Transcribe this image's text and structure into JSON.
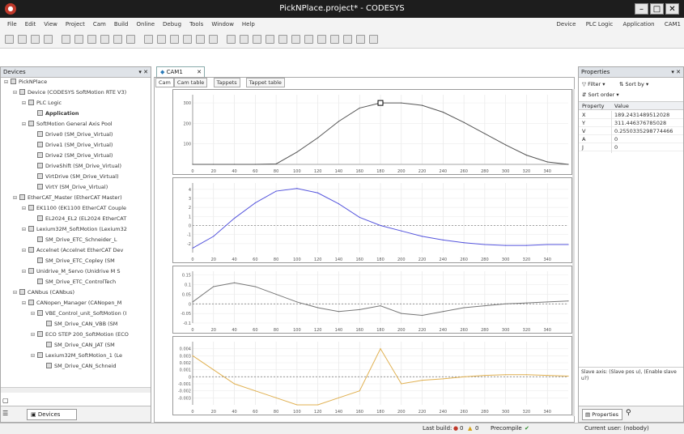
{
  "window": {
    "title": "PickNPlace.project* - CODESYS",
    "app_icon": "codesys-icon"
  },
  "menu": {
    "items": [
      "File",
      "Edit",
      "View",
      "Project",
      "Cam",
      "Build",
      "Online",
      "Debug",
      "Tools",
      "Window",
      "Help"
    ],
    "right": {
      "device": "Device",
      "plc": "PLC Logic",
      "application": "Application",
      "cam": "CAM1"
    }
  },
  "devices_panel": {
    "title": "Devices",
    "tab_label": "Devices",
    "items": [
      {
        "label": "PickNPlace",
        "level": 0,
        "icon": "project-icon"
      },
      {
        "label": "Device (CODESYS SoftMotion RTE V3)",
        "level": 1,
        "icon": "device-icon"
      },
      {
        "label": "PLC Logic",
        "level": 2,
        "icon": "plc-icon"
      },
      {
        "label": "Application",
        "level": 3,
        "icon": "application-icon",
        "bold": true
      },
      {
        "label": "SoftMotion General Axis Pool",
        "level": 2,
        "icon": "axis-pool-icon"
      },
      {
        "label": "Drive0 (SM_Drive_Virtual)",
        "level": 3,
        "icon": "drive-icon"
      },
      {
        "label": "Drive1 (SM_Drive_Virtual)",
        "level": 3,
        "icon": "drive-icon"
      },
      {
        "label": "Drive2 (SM_Drive_Virtual)",
        "level": 3,
        "icon": "drive-icon"
      },
      {
        "label": "DriveShift (SM_Drive_Virtual)",
        "level": 3,
        "icon": "drive-icon"
      },
      {
        "label": "VirtDrive (SM_Drive_Virtual)",
        "level": 3,
        "icon": "drive-icon"
      },
      {
        "label": "VirtY (SM_Drive_Virtual)",
        "level": 3,
        "icon": "drive-icon"
      },
      {
        "label": "EtherCAT_Master (EtherCAT Master)",
        "level": 1,
        "icon": "ethercat-icon"
      },
      {
        "label": "EK1100 (EK1100 EtherCAT Couple",
        "level": 2,
        "icon": "coupler-icon"
      },
      {
        "label": "EL2024_EL2 (EL2024 EtherCAT",
        "level": 3,
        "icon": "io-icon"
      },
      {
        "label": "Lexium32M_SoftMotion (Lexium32",
        "level": 2,
        "icon": "drive-icon"
      },
      {
        "label": "SM_Drive_ETC_Schneider_L",
        "level": 3,
        "icon": "drive-icon"
      },
      {
        "label": "Accelnet (Accelnet EtherCAT Dev",
        "level": 2,
        "icon": "drive-icon"
      },
      {
        "label": "SM_Drive_ETC_Copley (SM",
        "level": 3,
        "icon": "drive-icon"
      },
      {
        "label": "Unidrive_M_Servo (Unidrive M S",
        "level": 2,
        "icon": "drive-icon"
      },
      {
        "label": "SM_Drive_ETC_ControlTech",
        "level": 3,
        "icon": "drive-icon"
      },
      {
        "label": "CANbus (CANbus)",
        "level": 1,
        "icon": "canbus-icon"
      },
      {
        "label": "CANopen_Manager (CANopen_M",
        "level": 2,
        "icon": "canopen-icon"
      },
      {
        "label": "VBE_Control_unit_SoftMotion (I",
        "level": 3,
        "icon": "drive-icon"
      },
      {
        "label": "SM_Drive_CAN_VBB (SM",
        "level": 4,
        "icon": "drive-icon"
      },
      {
        "label": "ECO STEP 200_SoftMotion (ECO",
        "level": 3,
        "icon": "drive-icon"
      },
      {
        "label": "SM_Drive_CAN_JAT (SM",
        "level": 4,
        "icon": "drive-icon"
      },
      {
        "label": "Lexium32M_SoftMotion_1 (Le",
        "level": 3,
        "icon": "drive-icon"
      },
      {
        "label": "SM_Drive_CAN_Schneid",
        "level": 4,
        "icon": "drive-icon"
      }
    ]
  },
  "editor": {
    "doc_tab": "CAM1",
    "subtabs": [
      "Cam",
      "Cam table",
      "Tappets",
      "Tappet table"
    ]
  },
  "properties": {
    "title": "Properties",
    "filter_label": "Filter",
    "sort_by_label": "Sort by",
    "sort_order_label": "Sort order",
    "col_property": "Property",
    "col_value": "Value",
    "rows": [
      {
        "k": "X",
        "v": "189.2431489512028"
      },
      {
        "k": "Y",
        "v": "311.446376785028"
      },
      {
        "k": "V",
        "v": "0.2550335298774466"
      },
      {
        "k": "A",
        "v": "0"
      },
      {
        "k": "J",
        "v": "0"
      }
    ],
    "hint": "Slave axis: (Slave pos u), (Enable slave u?)",
    "tab_label": "Properties"
  },
  "status": {
    "last_build": "Last build:",
    "errors": "0",
    "warnings": "0",
    "precompile": "Precompile",
    "user": "Current user: (nobody)"
  },
  "chart_data": [
    {
      "type": "line",
      "x": [
        0,
        20,
        40,
        60,
        80,
        100,
        120,
        140,
        160,
        180,
        200,
        220,
        240,
        260,
        280,
        300,
        320,
        340,
        360
      ],
      "series": [
        {
          "values": [
            0,
            0,
            0,
            0,
            2,
            60,
            130,
            210,
            275,
            300,
            300,
            288,
            255,
            205,
            150,
            95,
            45,
            12,
            0
          ]
        }
      ],
      "x_ticks": [
        "0",
        "20",
        "40",
        "60",
        "80",
        "100",
        "120",
        "140",
        "160",
        "180",
        "200",
        "220",
        "240",
        "260",
        "280",
        "300",
        "320",
        "340"
      ],
      "y_ticks": [
        "300",
        "200",
        "100"
      ],
      "ylim": [
        0,
        340
      ],
      "grid": true,
      "color": "#555555",
      "marker": {
        "x": 180,
        "y": 300
      }
    },
    {
      "type": "line",
      "x": [
        0,
        20,
        40,
        60,
        80,
        100,
        120,
        140,
        160,
        180,
        200,
        220,
        240,
        260,
        280,
        300,
        320,
        340,
        360
      ],
      "series": [
        {
          "values": [
            -2.5,
            -1.2,
            0.8,
            2.5,
            3.8,
            4.1,
            3.6,
            2.4,
            0.9,
            0,
            -0.6,
            -1.2,
            -1.6,
            -1.9,
            -2.1,
            -2.2,
            -2.2,
            -2.1,
            -2.1
          ]
        }
      ],
      "y_ticks": [
        "4",
        "3",
        "2",
        "1",
        "0",
        "-1",
        "-2"
      ],
      "ylim": [
        -3,
        4.7
      ],
      "grid": true,
      "color": "#5555dd"
    },
    {
      "type": "line",
      "x": [
        0,
        20,
        40,
        60,
        80,
        100,
        120,
        140,
        160,
        180,
        200,
        220,
        240,
        260,
        280,
        300,
        320,
        340,
        360
      ],
      "series": [
        {
          "values": [
            0.01,
            0.09,
            0.11,
            0.09,
            0.05,
            0.01,
            -0.02,
            -0.04,
            -0.03,
            -0.01,
            -0.05,
            -0.06,
            -0.04,
            -0.02,
            -0.01,
            0,
            0.005,
            0.01,
            0.015
          ]
        }
      ],
      "y_ticks": [
        "0.15",
        "0.1",
        "0.05",
        "0",
        "-0.05",
        "-0.1"
      ],
      "ylim": [
        -0.1,
        0.17
      ],
      "grid": true,
      "color": "#777777"
    },
    {
      "type": "line",
      "x": [
        0,
        20,
        40,
        60,
        80,
        100,
        120,
        140,
        160,
        180,
        200,
        220,
        240,
        260,
        280,
        300,
        320,
        340,
        360
      ],
      "series": [
        {
          "values": [
            0.003,
            0.001,
            -0.001,
            -0.002,
            -0.003,
            -0.004,
            -0.004,
            -0.003,
            -0.002,
            0.004,
            -0.001,
            -0.0005,
            -0.0003,
            0,
            0.0002,
            0.0003,
            0.0003,
            0.0002,
            0.0001
          ]
        }
      ],
      "y_ticks": [
        "0.004",
        "0.003",
        "0.002",
        "0.001",
        "0",
        "-0.001",
        "-0.002",
        "-0.003"
      ],
      "ylim": [
        -0.004,
        0.005
      ],
      "grid": true,
      "color": "#e0b050"
    }
  ]
}
